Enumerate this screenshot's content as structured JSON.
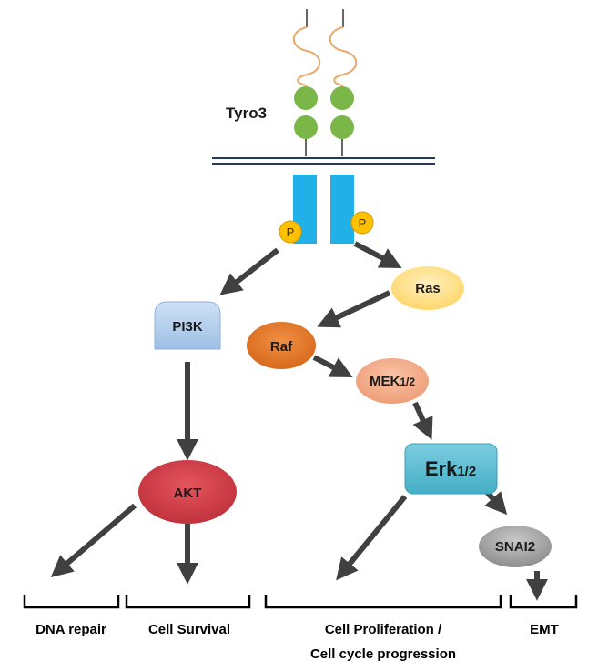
{
  "receptor": {
    "name": "Tyro3",
    "phospho_label": "P"
  },
  "nodes": {
    "pi3k": "PI3K",
    "akt": "AKT",
    "ras": "Ras",
    "raf": "Raf",
    "mek": {
      "main": "MEK",
      "sub": "1/2"
    },
    "erk": {
      "main": "Erk",
      "sub": "1/2"
    },
    "snai2": "SNAI2"
  },
  "outcomes": {
    "dna_repair": "DNA repair",
    "cell_survival": "Cell Survival",
    "proliferation_line1": "Cell Proliferation /",
    "proliferation_line2": "Cell cycle progression",
    "emt": "EMT"
  },
  "colors": {
    "ligand_loop": "#e8a868",
    "ig_domain": "#7ab648",
    "membrane": "#1f3864",
    "kinase_domain": "#22b0e8",
    "phospho": "#ffc000",
    "pi3k": "#b4cfee",
    "akt": "#d9434c",
    "ras": "#ffe08f",
    "raf": "#e87a2e",
    "mek": "#f4b090",
    "erk": "#5ebfd4",
    "snai2": "#a8a8a8",
    "arrow": "#404040",
    "bracket": "#000000"
  }
}
